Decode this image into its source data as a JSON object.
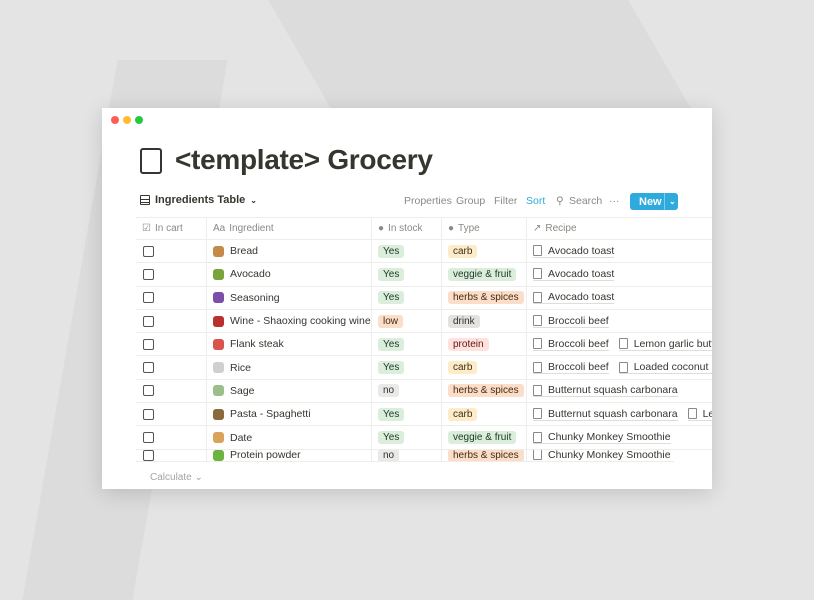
{
  "window": {
    "title": "<template> Grocery",
    "view_name": "Ingredients Table"
  },
  "toolbar": {
    "properties": "Properties",
    "group": "Group",
    "filter": "Filter",
    "sort": "Sort",
    "search": "Search",
    "more": "···",
    "new": "New"
  },
  "columns": {
    "in_cart": "In cart",
    "ingredient": "Ingredient",
    "in_stock": "In stock",
    "type": "Type",
    "recipe": "Recipe"
  },
  "tag_colors": {
    "Yes": "#dbeddb",
    "low": "#fadec9",
    "no": "#e9e9e7",
    "carb": "#fdecc8",
    "veggie & fruit": "#dbeddb",
    "herbs & spices": "#fadec9",
    "drink": "#e3e2e0",
    "protein": "#ffe2dd"
  },
  "rows": [
    {
      "ingredient": "Bread",
      "icon": "bread-icon",
      "stock": "Yes",
      "type": "carb",
      "recipes": [
        "Avocado toast"
      ]
    },
    {
      "ingredient": "Avocado",
      "icon": "avocado-icon",
      "stock": "Yes",
      "type": "veggie & fruit",
      "recipes": [
        "Avocado toast"
      ]
    },
    {
      "ingredient": "Seasoning",
      "icon": "salt-icon",
      "stock": "Yes",
      "type": "herbs & spices",
      "recipes": [
        "Avocado toast"
      ]
    },
    {
      "ingredient": "Wine - Shaoxing cooking wine",
      "icon": "wine-bottle-icon",
      "stock": "low",
      "type": "drink",
      "recipes": [
        "Broccoli beef"
      ]
    },
    {
      "ingredient": "Flank steak",
      "icon": "steak-icon",
      "stock": "Yes",
      "type": "protein",
      "recipes": [
        "Broccoli beef",
        "Lemon garlic butter"
      ]
    },
    {
      "ingredient": "Rice",
      "icon": "rice-icon",
      "stock": "Yes",
      "type": "carb",
      "recipes": [
        "Broccoli beef",
        "Loaded coconut rice"
      ]
    },
    {
      "ingredient": "Sage",
      "icon": "herb-icon",
      "stock": "no",
      "type": "herbs & spices",
      "recipes": [
        "Butternut squash carbonara"
      ]
    },
    {
      "ingredient": "Pasta - Spaghetti",
      "icon": "pasta-icon",
      "stock": "Yes",
      "type": "carb",
      "recipes": [
        "Butternut squash carbonara",
        "Lemon"
      ]
    },
    {
      "ingredient": "Date",
      "icon": "wheat-icon",
      "stock": "Yes",
      "type": "veggie & fruit",
      "recipes": [
        "Chunky Monkey Smoothie"
      ]
    },
    {
      "ingredient": "Protein powder",
      "icon": "protein-bar-icon",
      "stock": "no",
      "type": "herbs & spices",
      "recipes": [
        "Chunky Monkey Smoothie"
      ]
    }
  ],
  "footer": {
    "calculate": "Calculate"
  }
}
